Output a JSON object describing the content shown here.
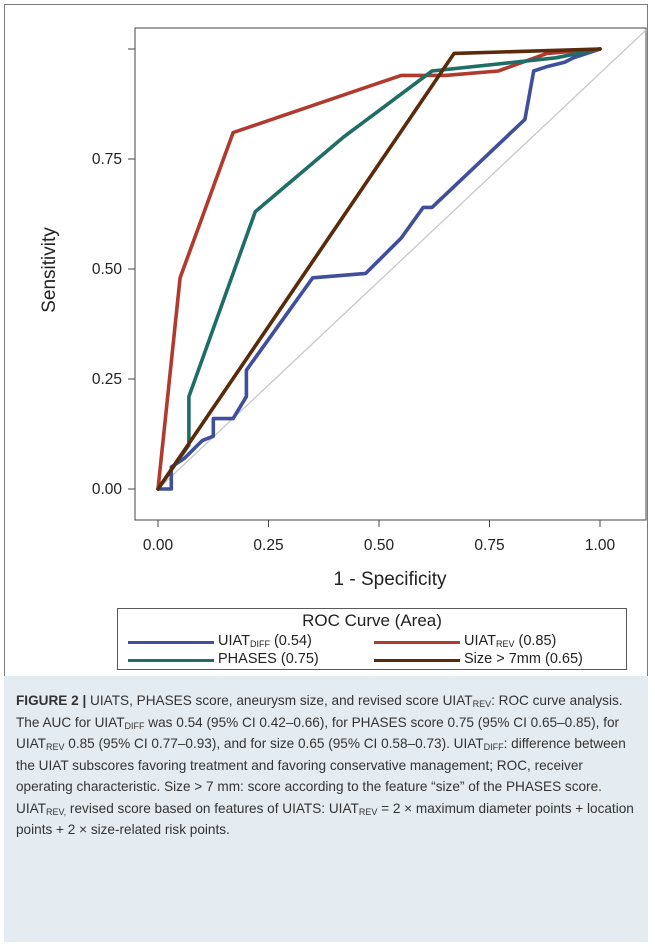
{
  "chart_data": {
    "type": "line",
    "xlabel": "1 - Specificity",
    "ylabel": "Sensitivity",
    "xlim": [
      0,
      1
    ],
    "ylim": [
      0,
      1
    ],
    "x_ticks": [
      "0.00",
      "0.25",
      "0.50",
      "0.75",
      "1.00"
    ],
    "y_ticks": [
      "0.00",
      "0.25",
      "0.50",
      "0.75"
    ],
    "legend_title": "ROC Curve (Area)",
    "legend_position": "bottom",
    "reference_diagonal": true,
    "series": [
      {
        "name": "UIATDIFF (0.54)",
        "name_main": "UIAT",
        "name_sub": "DIFF",
        "name_rest": " (0.54)",
        "color": "#3f4f9c",
        "x": [
          0,
          0.03,
          0.03,
          0.06,
          0.1,
          0.125,
          0.125,
          0.17,
          0.2,
          0.2,
          0.35,
          0.47,
          0.55,
          0.6,
          0.62,
          0.62,
          0.83,
          0.85,
          0.85,
          0.88,
          0.92,
          0.94,
          1.0
        ],
        "y": [
          0,
          0,
          0.05,
          0.07,
          0.11,
          0.12,
          0.16,
          0.16,
          0.21,
          0.27,
          0.48,
          0.49,
          0.57,
          0.64,
          0.64,
          0.64,
          0.84,
          0.95,
          0.95,
          0.96,
          0.97,
          0.98,
          1.0
        ]
      },
      {
        "name": "UIATREV (0.85)",
        "name_main": "UIAT",
        "name_sub": "REV",
        "name_rest": " (0.85)",
        "color": "#b03a2e",
        "x": [
          0,
          0.05,
          0.17,
          0.55,
          0.65,
          0.77,
          0.88,
          1.0
        ],
        "y": [
          0,
          0.48,
          0.81,
          0.94,
          0.94,
          0.95,
          0.99,
          1.0
        ]
      },
      {
        "name": "PHASES (0.75)",
        "name_main": "PHASES",
        "name_sub": "",
        "name_rest": " (0.75)",
        "color": "#1e6e66",
        "x": [
          0,
          0.07,
          0.07,
          0.07,
          0.22,
          0.42,
          0.62,
          0.9,
          1.0
        ],
        "y": [
          0,
          0.1,
          0.21,
          0.21,
          0.63,
          0.8,
          0.95,
          0.98,
          1.0
        ]
      },
      {
        "name": "Size > 7mm (0.65)",
        "name_main": "Size > 7mm",
        "name_sub": "",
        "name_rest": " (0.65)",
        "color": "#5a2a0a",
        "x": [
          0,
          0.67,
          1.0
        ],
        "y": [
          0,
          0.99,
          1.0
        ]
      }
    ]
  },
  "caption": {
    "lead": "FIGURE 2 |",
    "text": " UIATS, PHASES score, aneurysm size, and revised score UIATREV: ROC curve analysis. The AUC for UIATDIFF was 0.54 (95% CI 0.42–0.66), for PHASES score 0.75 (95% CI 0.65–0.85), for UIATREV 0.85 (95% CI 0.77–0.93), and for size 0.65 (95% CI 0.58–0.73). UIATDIFF: difference between the UIAT subscores favoring treatment and favoring conservative management; ROC, receiver operating characteristic. Size > 7 mm: score according to the feature “size” of the PHASES score. UIATREV, revised score based on features of UIATS: UIATREV = 2 × maximum diameter points + location points + 2 × size-related risk points.",
    "segments": [
      {
        "t": " UIATS, PHASES score, aneurysm size, and revised score UIAT"
      },
      {
        "s": "REV"
      },
      {
        "t": ": ROC curve analysis. The AUC for UIAT"
      },
      {
        "s": "DIFF"
      },
      {
        "t": " was 0.54 (95% CI 0.42–0.66), for PHASES score 0.75 (95% CI 0.65–0.85), for UIAT"
      },
      {
        "s": "REV"
      },
      {
        "t": " 0.85 (95% CI 0.77–0.93), and for size 0.65 (95% CI 0.58–0.73). UIAT"
      },
      {
        "s": "DIFF"
      },
      {
        "t": ": difference between the UIAT subscores favoring treatment and favoring conservative management; ROC, receiver operating characteristic. Size > 7 mm: score according to the feature “size” of the PHASES score. UIAT"
      },
      {
        "s": "REV,"
      },
      {
        "t": " revised score based on features of UIATS: UIAT"
      },
      {
        "s": "REV"
      },
      {
        "t": " = 2 × maximum diameter points + location points + 2 × size-related risk points."
      }
    ]
  }
}
